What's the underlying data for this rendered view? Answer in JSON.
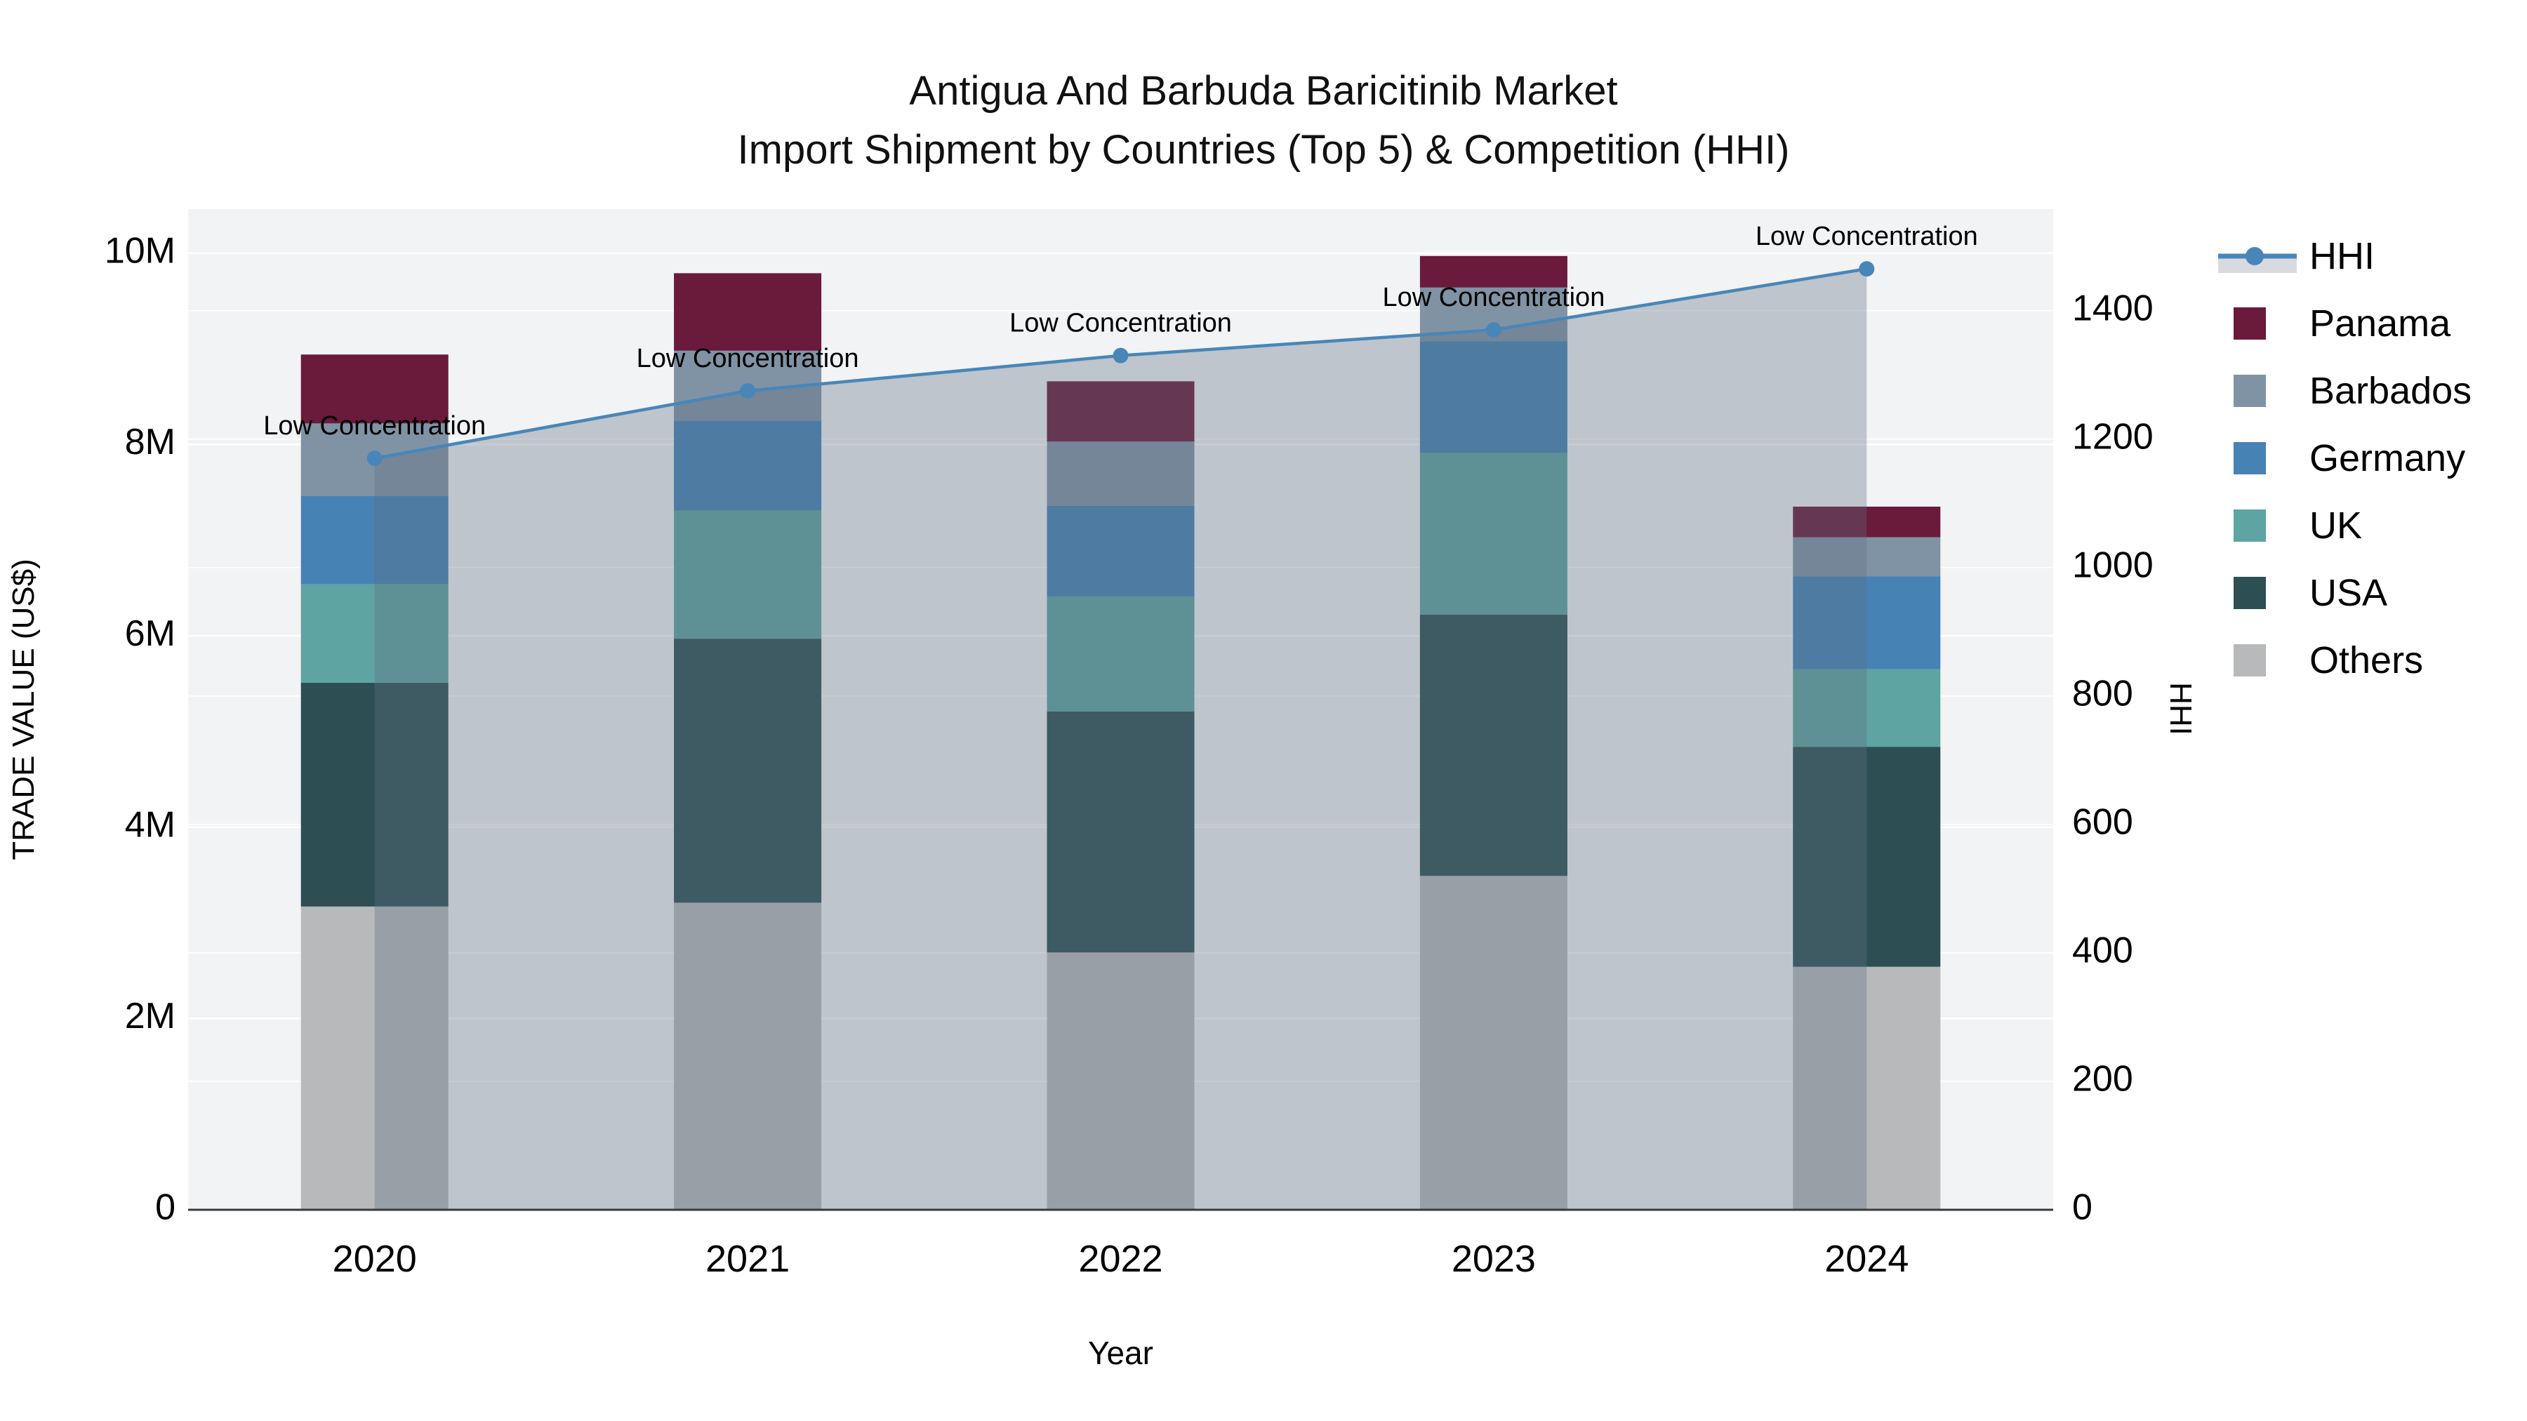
{
  "title": {
    "line1": "Antigua And Barbuda Baricitinib Market",
    "line2": "Import Shipment by Countries (Top 5) & Competition (HHI)"
  },
  "chart_data": {
    "type": "bar+line",
    "subtype": "stacked bars (left axis) with HHI line + area (right axis)",
    "categories": [
      "2020",
      "2021",
      "2022",
      "2023",
      "2024"
    ],
    "series": [
      {
        "name": "Others",
        "color": "#B7B9BA",
        "values": [
          3170000,
          3210000,
          2690000,
          3490000,
          2540000
        ]
      },
      {
        "name": "USA",
        "color": "#2D4F53",
        "values": [
          2340000,
          2760000,
          2520000,
          2730000,
          2300000
        ]
      },
      {
        "name": "UK",
        "color": "#5DA4A2",
        "values": [
          1030000,
          1340000,
          1200000,
          1690000,
          810000
        ]
      },
      {
        "name": "Germany",
        "color": "#4682B4",
        "values": [
          920000,
          940000,
          950000,
          1170000,
          970000
        ]
      },
      {
        "name": "Barbados",
        "color": "#8093A4",
        "values": [
          760000,
          730000,
          670000,
          560000,
          410000
        ]
      },
      {
        "name": "Panama",
        "color": "#6A1A3B",
        "values": [
          720000,
          810000,
          630000,
          330000,
          320000
        ]
      }
    ],
    "line_series": {
      "name": "HHI",
      "color": "#4886BA",
      "area_color": "rgba(95,113,129,0.35)",
      "values": [
        1170,
        1275,
        1330,
        1370,
        1465
      ],
      "annotations": [
        "Low Concentration",
        "Low Concentration",
        "Low Concentration",
        "Low Concentration",
        "Low Concentration"
      ]
    },
    "xlabel": "Year",
    "ylabel": "TRADE VALUE (US$)",
    "y2label": "HHI",
    "ylim": [
      0,
      10460000
    ],
    "y2lim": [
      0,
      1558
    ],
    "ytick_labels": [
      "0",
      "2M",
      "4M",
      "6M",
      "8M",
      "10M"
    ],
    "ytick_values": [
      0,
      2000000,
      4000000,
      6000000,
      8000000,
      10000000
    ],
    "y2tick_values": [
      0,
      200,
      400,
      600,
      800,
      1000,
      1200,
      1400
    ],
    "grid": true,
    "plot_bg": "#F2F3F4",
    "grid_color": "#FFFFFF",
    "axis_line_color": "#3A3A3A",
    "text_color": "#000000",
    "legend_position": "right",
    "legend": [
      {
        "label": "HHI",
        "type": "line"
      },
      {
        "label": "Panama",
        "type": "square",
        "color": "#6A1A3B"
      },
      {
        "label": "Barbados",
        "type": "square",
        "color": "#8093A4"
      },
      {
        "label": "Germany",
        "type": "square",
        "color": "#4682B4"
      },
      {
        "label": "UK",
        "type": "square",
        "color": "#5DA4A2"
      },
      {
        "label": "USA",
        "type": "square",
        "color": "#2D4F53"
      },
      {
        "label": "Others",
        "type": "square",
        "color": "#B7B9BA"
      }
    ]
  }
}
